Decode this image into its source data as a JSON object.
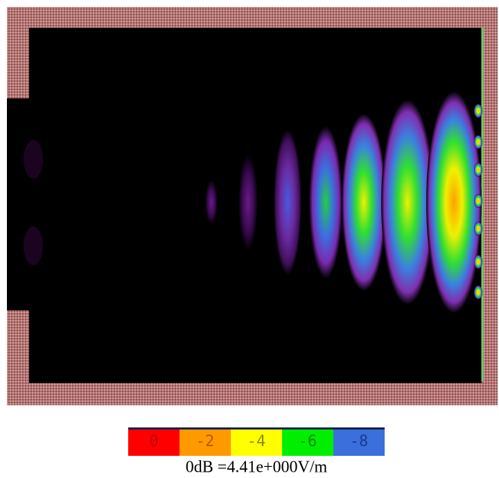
{
  "colorbar": {
    "segments": [
      {
        "label": "0",
        "color": "#ff0000",
        "text_color": "#c00000"
      },
      {
        "label": "-2",
        "color": "#ff9900",
        "text_color": "#b05a00"
      },
      {
        "label": "-4",
        "color": "#ffff00",
        "text_color": "#8a8a00"
      },
      {
        "label": "-6",
        "color": "#00ee00",
        "text_color": "#008a00"
      },
      {
        "label": "-8",
        "color": "#3a6fdc",
        "text_color": "#1a3a90"
      }
    ]
  },
  "caption": "0dB =4.41e+000V/m"
}
